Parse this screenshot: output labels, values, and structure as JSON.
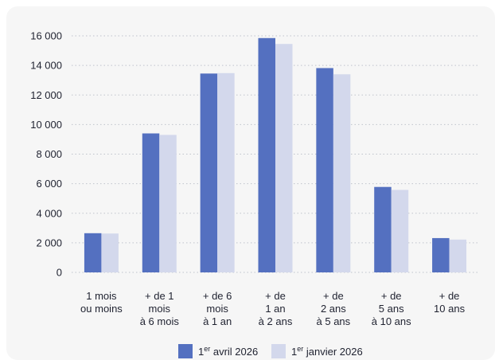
{
  "chart_data": {
    "type": "bar",
    "title": "",
    "xlabel": "",
    "ylabel": "",
    "ylim": [
      0,
      16000
    ],
    "yticks": [
      0,
      2000,
      4000,
      6000,
      8000,
      10000,
      12000,
      14000,
      16000
    ],
    "ytick_labels": [
      "0",
      "2 000",
      "4 000",
      "6 000",
      "8 000",
      "10 000",
      "12 000",
      "14 000",
      "16 000"
    ],
    "grid": true,
    "legend_position": "bottom-center",
    "categories": [
      [
        "1 mois",
        "ou moins"
      ],
      [
        "+ de 1",
        "mois",
        "à 6 mois"
      ],
      [
        "+ de 6",
        "mois",
        "à 1 an"
      ],
      [
        "+ de",
        "1 an",
        "à 2 ans"
      ],
      [
        "+ de",
        "2 ans",
        "à 5 ans"
      ],
      [
        "+ de",
        "5 ans",
        "à 10 ans"
      ],
      [
        "+ de",
        "10 ans"
      ]
    ],
    "series": [
      {
        "name_base": "1",
        "name_sup": "er",
        "name_rest": " avril 2026",
        "color": "#5470c0",
        "values": [
          2650,
          9400,
          13450,
          15850,
          13820,
          5780,
          2320
        ]
      },
      {
        "name_base": "1",
        "name_sup": "er",
        "name_rest": " janvier 2026",
        "color": "#d3d8ec",
        "values": [
          2630,
          9300,
          13480,
          15450,
          13400,
          5580,
          2220
        ]
      }
    ]
  }
}
